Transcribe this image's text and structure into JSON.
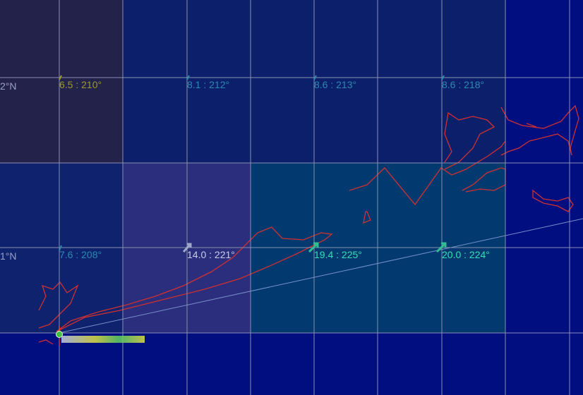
{
  "latitude_labels": [
    "2°N",
    "1°N"
  ],
  "wind_labels": [
    {
      "text": "6.5 : 210°",
      "color": "#9a9a30",
      "speed": 6.5,
      "direction": 210
    },
    {
      "text": "8.1 : 212°",
      "color": "#2a8ab0",
      "speed": 8.1,
      "direction": 212
    },
    {
      "text": "8.6 : 213°",
      "color": "#2a8ab0",
      "speed": 8.6,
      "direction": 213
    },
    {
      "text": "8.6 : 218°",
      "color": "#2a8ab0",
      "speed": 8.6,
      "direction": 218
    },
    {
      "text": "7.6 : 208°",
      "color": "#2a8ab0",
      "speed": 7.6,
      "direction": 208
    },
    {
      "text": "14.0 : 221°",
      "color": "#c8cce8",
      "speed": 14.0,
      "direction": 221
    },
    {
      "text": "19.4 : 225°",
      "color": "#30e0b0",
      "speed": 19.4,
      "direction": 225
    },
    {
      "text": "20.0 : 224°",
      "color": "#30e0b0",
      "speed": 20.0,
      "direction": 224
    }
  ],
  "colors": {
    "grid": "#8a8fb0",
    "coastline": "#d03030",
    "route": "#7890c8",
    "background": "#000e80"
  }
}
